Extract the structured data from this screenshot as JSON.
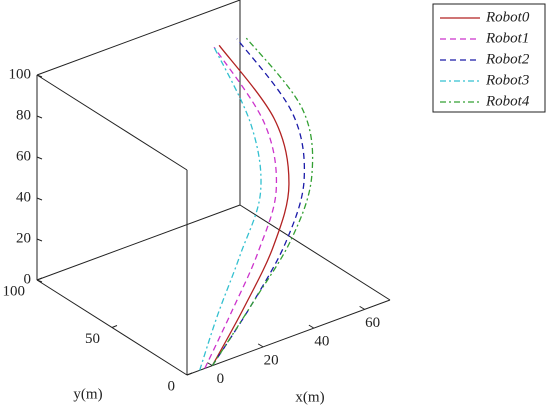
{
  "chart_data": {
    "type": "line3d",
    "xlabel": "x(m)",
    "ylabel": "y(m)",
    "xlim": [
      -10,
      70
    ],
    "xticks": [
      0,
      20,
      40,
      60
    ],
    "ylim": [
      0,
      100
    ],
    "yticks": [
      0,
      50,
      100
    ],
    "zlim": [
      0,
      100
    ],
    "zticks": [
      0,
      20,
      40,
      60,
      80,
      100
    ],
    "series": [
      {
        "name": "Robot0",
        "color": "#b22222",
        "dash": "",
        "x": [
          0,
          15,
          30,
          42,
          48,
          47
        ],
        "y": [
          0,
          4,
          10,
          20,
          40,
          75
        ],
        "z": [
          0,
          20,
          40,
          60,
          80,
          100
        ]
      },
      {
        "name": "Robot1",
        "color": "#cc33cc",
        "dash": "6,4",
        "x": [
          -3,
          10,
          24,
          37,
          44,
          45
        ],
        "y": [
          0,
          4,
          10,
          20,
          40,
          75
        ],
        "z": [
          0,
          20,
          40,
          60,
          80,
          100
        ]
      },
      {
        "name": "Robot2",
        "color": "#1a1aa8",
        "dash": "6,4",
        "x": [
          0,
          18,
          35,
          48,
          55,
          54
        ],
        "y": [
          0,
          4,
          10,
          20,
          40,
          75
        ],
        "z": [
          0,
          20,
          40,
          60,
          80,
          100
        ]
      },
      {
        "name": "Robot3",
        "color": "#33c0d0",
        "dash": "6,3,2,3",
        "x": [
          -5,
          5,
          18,
          32,
          40,
          45
        ],
        "y": [
          0,
          5,
          12,
          22,
          42,
          75
        ],
        "z": [
          0,
          20,
          40,
          60,
          80,
          100
        ]
      },
      {
        "name": "Robot4",
        "color": "#33a033",
        "dash": "6,3,2,3",
        "x": [
          0,
          18,
          37,
          51,
          59,
          57
        ],
        "y": [
          0,
          4,
          10,
          20,
          40,
          75
        ],
        "z": [
          0,
          20,
          40,
          60,
          80,
          100
        ]
      }
    ]
  }
}
